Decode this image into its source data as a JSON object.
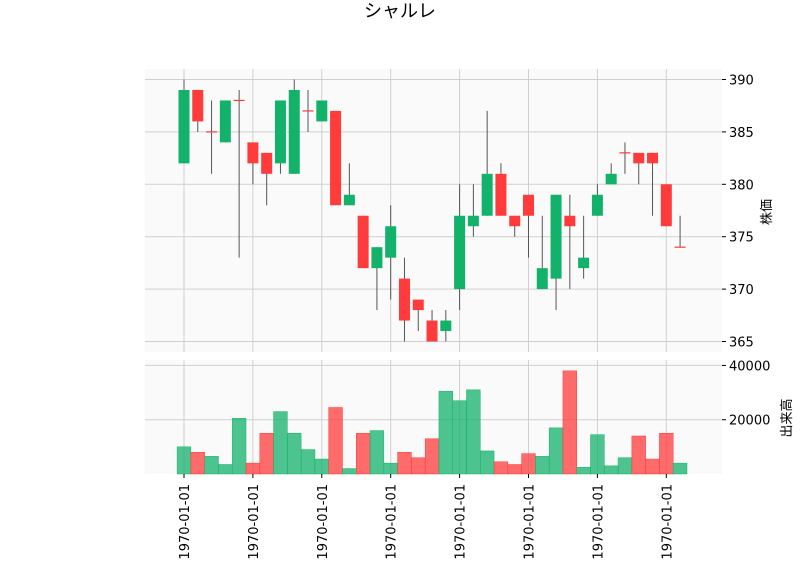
{
  "chart_data": {
    "type": "candlestick",
    "title": "シャルレ",
    "price_axis": {
      "label": "株価",
      "ylim": [
        364,
        391
      ],
      "ticks": [
        365,
        370,
        375,
        380,
        385,
        390
      ]
    },
    "volume_axis": {
      "label": "出来高",
      "ylim": [
        0,
        42000
      ],
      "ticks": [
        20000,
        40000
      ],
      "tick_labels": [
        "20000",
        "40000"
      ]
    },
    "x_tick_labels": [
      "1970-01-01",
      "1970-01-01",
      "1970-01-01",
      "1970-01-01",
      "1970-01-01",
      "1970-01-01",
      "1970-01-01",
      "1970-01-01"
    ],
    "x_tick_positions": [
      0,
      5,
      10,
      15,
      20,
      25,
      30,
      35
    ],
    "grid": true,
    "up_color": "#13b26b",
    "down_color": "#ff3b3b",
    "candles": [
      {
        "o": 382,
        "h": 390,
        "l": 382,
        "c": 389,
        "v": 10000
      },
      {
        "o": 389,
        "h": 389,
        "l": 385,
        "c": 386,
        "v": 8000
      },
      {
        "o": 385,
        "h": 388,
        "l": 381,
        "c": 385,
        "v": 6500
      },
      {
        "o": 384,
        "h": 388,
        "l": 384,
        "c": 388,
        "v": 3500
      },
      {
        "o": 388,
        "h": 389,
        "l": 373,
        "c": 388,
        "v": 20500
      },
      {
        "o": 384,
        "h": 384,
        "l": 380,
        "c": 382,
        "v": 4000
      },
      {
        "o": 383,
        "h": 383,
        "l": 378,
        "c": 381,
        "v": 15000
      },
      {
        "o": 382,
        "h": 388,
        "l": 381,
        "c": 388,
        "v": 23000
      },
      {
        "o": 381,
        "h": 390,
        "l": 381,
        "c": 389,
        "v": 15000
      },
      {
        "o": 387,
        "h": 389,
        "l": 385,
        "c": 387,
        "v": 9000
      },
      {
        "o": 386,
        "h": 388,
        "l": 386,
        "c": 388,
        "v": 5500
      },
      {
        "o": 387,
        "h": 387,
        "l": 378,
        "c": 378,
        "v": 24500
      },
      {
        "o": 378,
        "h": 382,
        "l": 378,
        "c": 379,
        "v": 2000
      },
      {
        "o": 377,
        "h": 377,
        "l": 372,
        "c": 372,
        "v": 15000
      },
      {
        "o": 372,
        "h": 374,
        "l": 368,
        "c": 374,
        "v": 16000
      },
      {
        "o": 373,
        "h": 378,
        "l": 369,
        "c": 376,
        "v": 4000
      },
      {
        "o": 371,
        "h": 373,
        "l": 365,
        "c": 367,
        "v": 8000
      },
      {
        "o": 369,
        "h": 369,
        "l": 366,
        "c": 368,
        "v": 6000
      },
      {
        "o": 367,
        "h": 368,
        "l": 365,
        "c": 365,
        "v": 13000
      },
      {
        "o": 366,
        "h": 368,
        "l": 365,
        "c": 367,
        "v": 30500
      },
      {
        "o": 370,
        "h": 380,
        "l": 368,
        "c": 377,
        "v": 27000
      },
      {
        "o": 376,
        "h": 380,
        "l": 375,
        "c": 377,
        "v": 31000
      },
      {
        "o": 377,
        "h": 387,
        "l": 377,
        "c": 381,
        "v": 8500
      },
      {
        "o": 381,
        "h": 382,
        "l": 377,
        "c": 377,
        "v": 4500
      },
      {
        "o": 377,
        "h": 377,
        "l": 375,
        "c": 376,
        "v": 3500
      },
      {
        "o": 379,
        "h": 379,
        "l": 373,
        "c": 377,
        "v": 7500
      },
      {
        "o": 370,
        "h": 377,
        "l": 370,
        "c": 372,
        "v": 6500
      },
      {
        "o": 371,
        "h": 379,
        "l": 368,
        "c": 379,
        "v": 17000
      },
      {
        "o": 377,
        "h": 379,
        "l": 370,
        "c": 376,
        "v": 38000
      },
      {
        "o": 372,
        "h": 377,
        "l": 371,
        "c": 373,
        "v": 2500
      },
      {
        "o": 377,
        "h": 380,
        "l": 377,
        "c": 379,
        "v": 14500
      },
      {
        "o": 380,
        "h": 382,
        "l": 380,
        "c": 381,
        "v": 3000
      },
      {
        "o": 383,
        "h": 384,
        "l": 381,
        "c": 383,
        "v": 6000
      },
      {
        "o": 383,
        "h": 383,
        "l": 380,
        "c": 382,
        "v": 14000
      },
      {
        "o": 383,
        "h": 383,
        "l": 377,
        "c": 382,
        "v": 5500
      },
      {
        "o": 380,
        "h": 380,
        "l": 376,
        "c": 376,
        "v": 15000
      },
      {
        "o": 374,
        "h": 377,
        "l": 374,
        "c": 374,
        "v": 4000
      }
    ]
  }
}
